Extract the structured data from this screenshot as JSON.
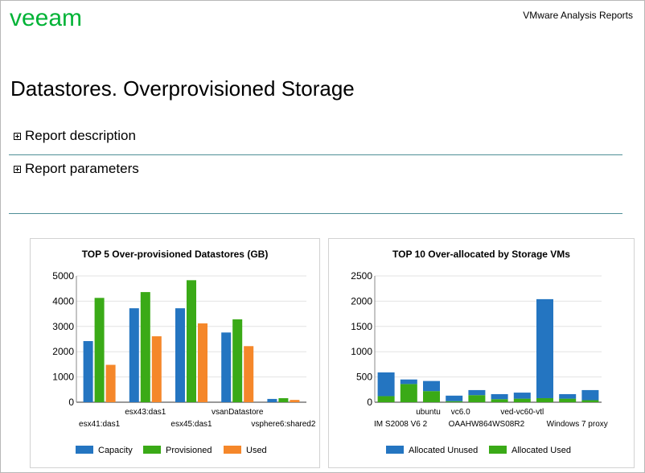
{
  "header": {
    "logo_text": "veeam",
    "report_type": "VMware Analysis Reports"
  },
  "page": {
    "title": "Datastores. Overprovisioned Storage"
  },
  "sections": [
    {
      "label": "Report description"
    },
    {
      "label": "Report parameters"
    }
  ],
  "colors": {
    "brand_green": "#00b336",
    "blue": "#2475c1",
    "green": "#3aaa17",
    "orange": "#f5872a",
    "rule": "#4f8f97"
  },
  "chart_data": [
    {
      "type": "bar",
      "title": "TOP 5 Over-provisioned Datastores (GB)",
      "categories": [
        "esx41:das1",
        "esx43:das1",
        "esx45:das1",
        "vsanDatastore",
        "vsphere6:shared2"
      ],
      "series": [
        {
          "name": "Capacity",
          "values": [
            2420,
            3720,
            3720,
            2760,
            130
          ]
        },
        {
          "name": "Provisioned",
          "values": [
            4130,
            4360,
            4830,
            3280,
            160
          ]
        },
        {
          "name": "Used",
          "values": [
            1480,
            2610,
            3120,
            2220,
            90
          ]
        }
      ],
      "ylim": [
        0,
        5000
      ],
      "yticks": [
        "0",
        "1000",
        "2000",
        "3000",
        "4000",
        "5000"
      ],
      "grid": true,
      "legend": "bottom"
    },
    {
      "type": "bar",
      "stacked": true,
      "title": "TOP 10 Over-allocated by Storage VMs",
      "categories": [
        "IM S2008 V6 2",
        "",
        "ubuntu",
        "vc6.0",
        "OAAHW864WS08R2",
        "",
        "ved-vc60-vtl",
        "",
        "Windows 7 proxy",
        ""
      ],
      "series": [
        {
          "name": "Allocated Unused",
          "values": [
            470,
            90,
            200,
            110,
            100,
            100,
            120,
            1960,
            90,
            200
          ]
        },
        {
          "name": "Allocated Used",
          "values": [
            120,
            360,
            220,
            20,
            140,
            60,
            70,
            80,
            70,
            40
          ]
        }
      ],
      "ylim": [
        0,
        2500
      ],
      "yticks": [
        "0",
        "500",
        "1000",
        "1500",
        "2000",
        "2500"
      ],
      "grid": true,
      "legend": "bottom"
    }
  ]
}
